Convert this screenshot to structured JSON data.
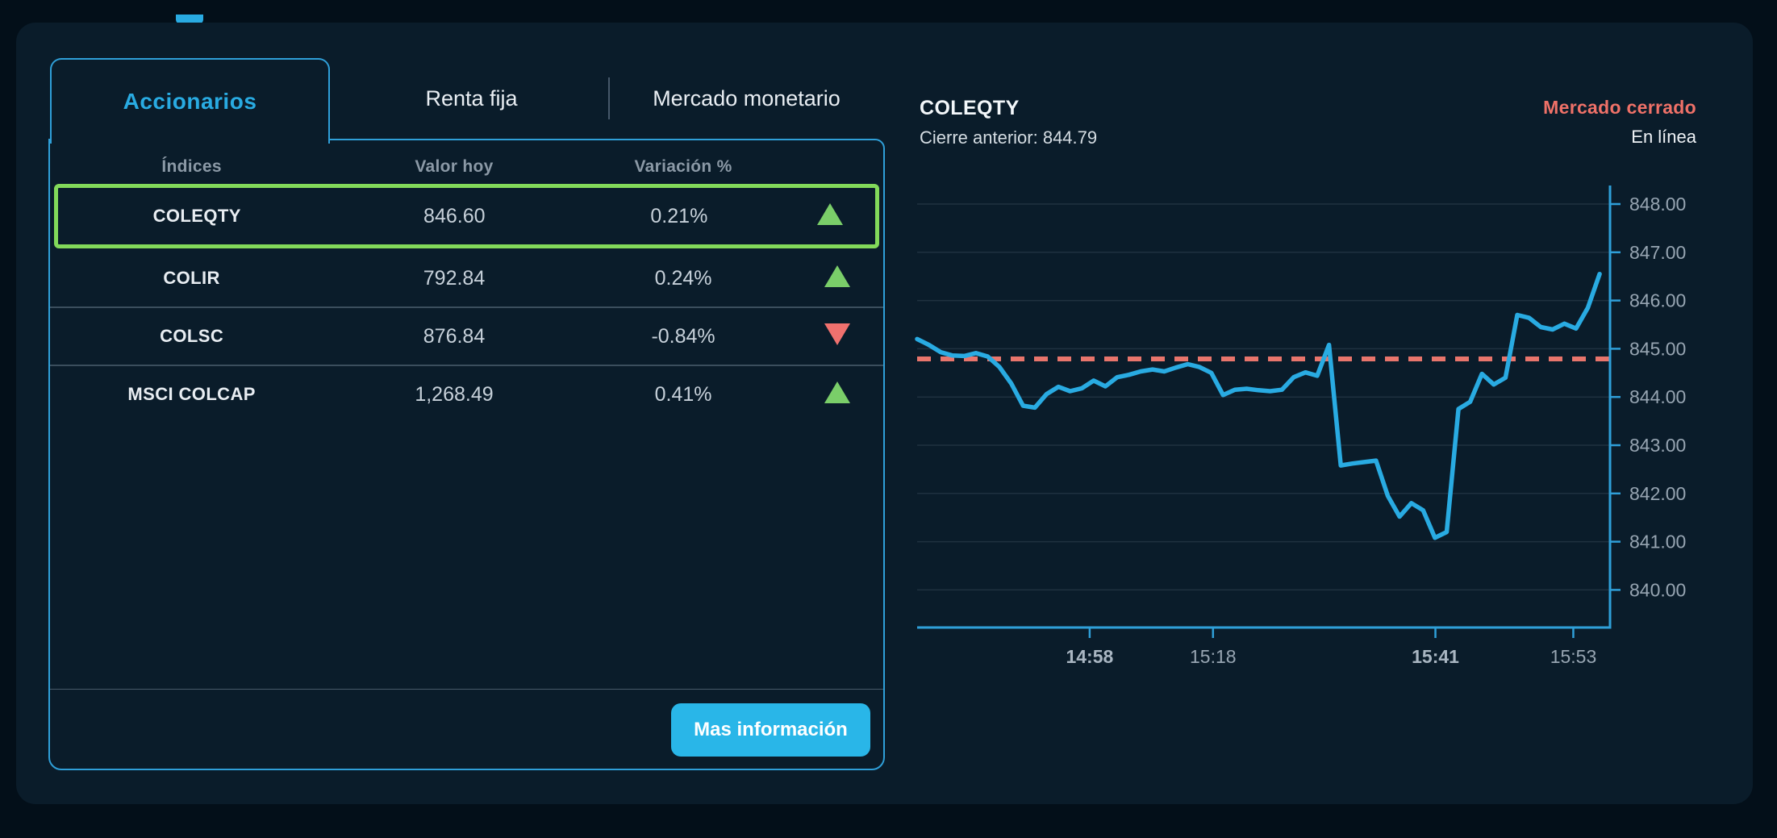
{
  "tabs": {
    "items": [
      {
        "label": "Accionarios",
        "active": true
      },
      {
        "label": "Renta fija",
        "active": false
      },
      {
        "label": "Mercado monetario",
        "active": false
      }
    ]
  },
  "table": {
    "headers": [
      "Índices",
      "Valor hoy",
      "Variación %"
    ],
    "rows": [
      {
        "name": "COLEQTY",
        "value": "846.60",
        "variation": "0.21%",
        "direction": "up",
        "highlighted": true
      },
      {
        "name": "COLIR",
        "value": "792.84",
        "variation": "0.24%",
        "direction": "up",
        "highlighted": false
      },
      {
        "name": "COLSC",
        "value": "876.84",
        "variation": "-0.84%",
        "direction": "down",
        "highlighted": false
      },
      {
        "name": "MSCI COLCAP",
        "value": "1,268.49",
        "variation": "0.41%",
        "direction": "up",
        "highlighted": false
      }
    ]
  },
  "button": {
    "label": "Mas información"
  },
  "quote": {
    "symbol": "COLEQTY",
    "prev_close_label": "Cierre anterior: 844.79",
    "market_status": "Mercado cerrado",
    "online_status": "En línea"
  },
  "colors": {
    "accent": "#29abe2",
    "axis": "#2f9fd8",
    "grid": "rgba(160,180,200,0.14)",
    "tick_label": "#97a5b2",
    "tick_label_bold": "#a9b6c2",
    "line": "#29abe2",
    "prev_close_line": "#e8756c",
    "up": "#7ace69",
    "down": "#f0716e",
    "highlight_border": "#82d95a"
  },
  "chart_data": {
    "type": "line",
    "title": "COLEQTY intraday",
    "prev_close": 844.79,
    "ylim": [
      839.2,
      848.45
    ],
    "grid": true,
    "legend_position": "none",
    "x_span_fraction": 0.985,
    "y_ticks": [
      {
        "value": 848,
        "label": "848.00"
      },
      {
        "value": 847,
        "label": "847.00"
      },
      {
        "value": 846,
        "label": "846.00"
      },
      {
        "value": 845,
        "label": "845.00"
      },
      {
        "value": 844,
        "label": "844.00"
      },
      {
        "value": 843,
        "label": "843.00"
      },
      {
        "value": 842,
        "label": "842.00"
      },
      {
        "value": 841,
        "label": "841.00"
      },
      {
        "value": 840,
        "label": "840.00"
      }
    ],
    "x_ticks": [
      {
        "label": "14:58",
        "pos": 0.249,
        "bold": true
      },
      {
        "label": "15:18",
        "pos": 0.427,
        "bold": false
      },
      {
        "label": "15:41",
        "pos": 0.748,
        "bold": true
      },
      {
        "label": "15:53",
        "pos": 0.947,
        "bold": false
      }
    ],
    "series": [
      {
        "name": "COLEQTY",
        "values": [
          845.2,
          845.08,
          844.93,
          844.86,
          844.85,
          844.91,
          844.84,
          844.62,
          844.28,
          843.82,
          843.78,
          844.06,
          844.21,
          844.12,
          844.18,
          844.34,
          844.22,
          844.41,
          844.46,
          844.53,
          844.57,
          844.53,
          844.61,
          844.68,
          844.62,
          844.5,
          844.04,
          844.15,
          844.17,
          844.14,
          844.12,
          844.15,
          844.41,
          844.51,
          844.44,
          845.08,
          842.58,
          842.62,
          842.65,
          842.68,
          841.95,
          841.52,
          841.8,
          841.65,
          841.08,
          841.2,
          843.75,
          843.9,
          844.48,
          844.26,
          844.4,
          845.7,
          845.64,
          845.45,
          845.4,
          845.52,
          845.42,
          845.85,
          846.55
        ]
      }
    ]
  }
}
